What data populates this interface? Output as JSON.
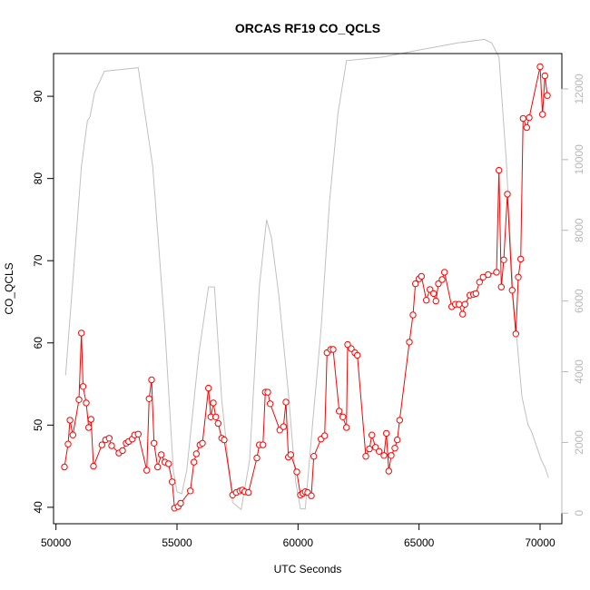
{
  "chart_data": {
    "type": "line",
    "title": "ORCAS RF19 CO_QCLS",
    "xlabel": "UTC Seconds",
    "ylabel": "CO_QCLS",
    "xlim": [
      49900,
      70900
    ],
    "ylim": [
      38.0,
      95.2
    ],
    "ylim_right": [
      -300,
      13000
    ],
    "x_ticks": [
      "50000",
      "55000",
      "60000",
      "65000",
      "70000"
    ],
    "x_tick_values": [
      50000,
      55000,
      60000,
      65000,
      70000
    ],
    "y_ticks": [
      "40",
      "50",
      "60",
      "70",
      "80",
      "90"
    ],
    "y_tick_values": [
      40,
      50,
      60,
      70,
      80,
      90
    ],
    "y_right_ticks": [
      "0",
      "2000",
      "4000",
      "6000",
      "8000",
      "10000",
      "12000"
    ],
    "y_right_tick_values": [
      0,
      2000,
      4000,
      6000,
      8000,
      10000,
      12000
    ],
    "series": [
      {
        "axis": "left",
        "color": "#ff0000",
        "marker": "open-circle",
        "points": [
          [
            50350,
            44.9
          ],
          [
            50500,
            47.7
          ],
          [
            50580,
            50.6
          ],
          [
            50700,
            48.8
          ],
          [
            50950,
            53.1
          ],
          [
            51050,
            61.2
          ],
          [
            51120,
            54.7
          ],
          [
            51250,
            52.7
          ],
          [
            51350,
            49.7
          ],
          [
            51450,
            50.7
          ],
          [
            51550,
            45.0
          ],
          [
            51900,
            47.6
          ],
          [
            52050,
            48.2
          ],
          [
            52200,
            48.4
          ],
          [
            52300,
            47.5
          ],
          [
            52600,
            46.6
          ],
          [
            52750,
            46.9
          ],
          [
            52900,
            47.8
          ],
          [
            53000,
            48.0
          ],
          [
            53150,
            48.3
          ],
          [
            53250,
            48.8
          ],
          [
            53400,
            48.9
          ],
          [
            53750,
            44.5
          ],
          [
            53850,
            53.2
          ],
          [
            53950,
            55.5
          ],
          [
            54050,
            47.8
          ],
          [
            54200,
            44.9
          ],
          [
            54350,
            46.4
          ],
          [
            54500,
            45.5
          ],
          [
            54650,
            45.3
          ],
          [
            54800,
            43.1
          ],
          [
            54900,
            39.9
          ],
          [
            55050,
            40.1
          ],
          [
            55150,
            40.5
          ],
          [
            55550,
            42.0
          ],
          [
            55700,
            45.5
          ],
          [
            55800,
            46.5
          ],
          [
            55950,
            47.6
          ],
          [
            56050,
            47.8
          ],
          [
            56300,
            54.5
          ],
          [
            56400,
            51.0
          ],
          [
            56500,
            52.7
          ],
          [
            56600,
            51.0
          ],
          [
            56700,
            50.2
          ],
          [
            56850,
            48.4
          ],
          [
            56950,
            48.2
          ],
          [
            57300,
            41.5
          ],
          [
            57450,
            41.8
          ],
          [
            57600,
            42.0
          ],
          [
            57700,
            42.1
          ],
          [
            57800,
            41.9
          ],
          [
            57950,
            41.8
          ],
          [
            58300,
            46.0
          ],
          [
            58400,
            47.6
          ],
          [
            58550,
            47.6
          ],
          [
            58650,
            54.0
          ],
          [
            58750,
            54.0
          ],
          [
            58850,
            52.6
          ],
          [
            59250,
            49.4
          ],
          [
            59400,
            49.8
          ],
          [
            59500,
            52.8
          ],
          [
            59600,
            46.1
          ],
          [
            59700,
            46.4
          ],
          [
            59950,
            44.3
          ],
          [
            60100,
            41.5
          ],
          [
            60200,
            41.7
          ],
          [
            60300,
            41.9
          ],
          [
            60400,
            41.8
          ],
          [
            60550,
            41.4
          ],
          [
            60650,
            46.2
          ],
          [
            60950,
            48.3
          ],
          [
            61100,
            48.7
          ],
          [
            61200,
            58.8
          ],
          [
            61350,
            59.2
          ],
          [
            61450,
            59.2
          ],
          [
            61700,
            51.7
          ],
          [
            61850,
            51.0
          ],
          [
            62000,
            49.7
          ],
          [
            62050,
            59.8
          ],
          [
            62200,
            59.3
          ],
          [
            62350,
            58.8
          ],
          [
            62450,
            58.5
          ],
          [
            62800,
            46.2
          ],
          [
            62950,
            47.1
          ],
          [
            63050,
            48.8
          ],
          [
            63200,
            47.3
          ],
          [
            63350,
            46.8
          ],
          [
            63550,
            46.3
          ],
          [
            63650,
            49.0
          ],
          [
            63750,
            44.4
          ],
          [
            63850,
            46.3
          ],
          [
            64000,
            47.2
          ],
          [
            64100,
            48.2
          ],
          [
            64200,
            50.6
          ],
          [
            64600,
            60.1
          ],
          [
            64750,
            63.4
          ],
          [
            64850,
            67.2
          ],
          [
            65000,
            67.8
          ],
          [
            65100,
            68.1
          ],
          [
            65300,
            65.2
          ],
          [
            65450,
            66.5
          ],
          [
            65600,
            66.0
          ],
          [
            65700,
            65.1
          ],
          [
            65800,
            67.2
          ],
          [
            65950,
            67.7
          ],
          [
            66050,
            68.6
          ],
          [
            66350,
            64.4
          ],
          [
            66500,
            64.7
          ],
          [
            66650,
            64.7
          ],
          [
            66800,
            63.5
          ],
          [
            66900,
            64.7
          ],
          [
            67100,
            65.8
          ],
          [
            67250,
            65.9
          ],
          [
            67350,
            66.0
          ],
          [
            67500,
            67.4
          ],
          [
            67650,
            68.0
          ],
          [
            67850,
            68.3
          ],
          [
            68200,
            68.6
          ],
          [
            68300,
            81.0
          ],
          [
            68400,
            66.8
          ],
          [
            68500,
            70.1
          ],
          [
            68650,
            78.1
          ],
          [
            68850,
            66.4
          ],
          [
            69000,
            61.1
          ],
          [
            69100,
            68.0
          ],
          [
            69200,
            70.2
          ],
          [
            69300,
            87.3
          ],
          [
            69450,
            86.2
          ],
          [
            69550,
            87.4
          ],
          [
            70000,
            93.6
          ],
          [
            70100,
            87.8
          ],
          [
            70200,
            92.5
          ],
          [
            70300,
            90.1
          ]
        ]
      },
      {
        "axis": "right",
        "color": "#c0c0c0",
        "marker": "none",
        "points": [
          [
            50400,
            3900
          ],
          [
            50700,
            6600
          ],
          [
            51050,
            9800
          ],
          [
            51300,
            11100
          ],
          [
            51400,
            11200
          ],
          [
            51600,
            11900
          ],
          [
            52000,
            12500
          ],
          [
            53400,
            12600
          ],
          [
            54000,
            9800
          ],
          [
            54500,
            5200
          ],
          [
            54850,
            1200
          ],
          [
            55000,
            600
          ],
          [
            55200,
            550
          ],
          [
            55400,
            1200
          ],
          [
            55900,
            4500
          ],
          [
            56300,
            6400
          ],
          [
            56550,
            6400
          ],
          [
            56850,
            3200
          ],
          [
            57300,
            300
          ],
          [
            57650,
            100
          ],
          [
            58000,
            1500
          ],
          [
            58400,
            6400
          ],
          [
            58700,
            8300
          ],
          [
            58900,
            7800
          ],
          [
            59200,
            6200
          ],
          [
            59600,
            3400
          ],
          [
            59900,
            900
          ],
          [
            60100,
            120
          ],
          [
            60300,
            120
          ],
          [
            60600,
            2500
          ],
          [
            60950,
            5200
          ],
          [
            61300,
            8800
          ],
          [
            61650,
            11300
          ],
          [
            62000,
            12800
          ],
          [
            63500,
            12900
          ],
          [
            65000,
            13100
          ],
          [
            66600,
            13300
          ],
          [
            67700,
            13400
          ],
          [
            68000,
            13300
          ],
          [
            68300,
            12900
          ],
          [
            68600,
            10000
          ],
          [
            68900,
            6000
          ],
          [
            69250,
            3300
          ],
          [
            69500,
            2500
          ],
          [
            69650,
            2300
          ],
          [
            69850,
            1900
          ],
          [
            70050,
            1500
          ],
          [
            70200,
            1300
          ],
          [
            70350,
            1000
          ]
        ]
      }
    ]
  }
}
